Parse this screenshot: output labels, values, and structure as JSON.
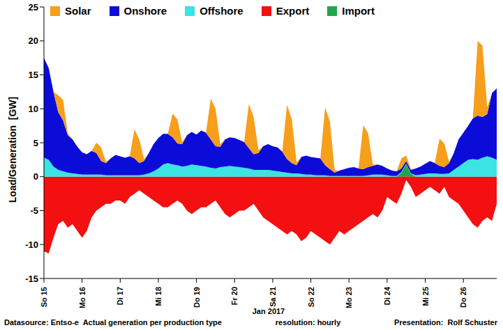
{
  "chart_data": {
    "type": "area",
    "stacked": true,
    "grid": false,
    "legend": "top",
    "x_label": "Jan 2017",
    "y_label": "Load/Generation  [GW]",
    "notes": [
      "Datasource: Entso-e  Actual generation per production type",
      "resolution: hourly",
      "Presentation:  Rolf Schuster"
    ],
    "categories": [
      "So 15",
      null,
      null,
      null,
      null,
      null,
      null,
      null,
      "Mo 16",
      null,
      null,
      null,
      null,
      null,
      null,
      null,
      "Di 17",
      null,
      null,
      null,
      null,
      null,
      null,
      null,
      "Mi 18",
      null,
      null,
      null,
      null,
      null,
      null,
      null,
      "Do 19",
      null,
      null,
      null,
      null,
      null,
      null,
      null,
      "Fr 20",
      null,
      null,
      null,
      null,
      null,
      null,
      null,
      "Sa 21",
      null,
      null,
      null,
      null,
      null,
      null,
      null,
      "So 22",
      null,
      null,
      null,
      null,
      null,
      null,
      null,
      "Mo 23",
      null,
      null,
      null,
      null,
      null,
      null,
      null,
      "Di 24",
      null,
      null,
      null,
      null,
      null,
      null,
      null,
      "Mi 25",
      null,
      null,
      null,
      null,
      null,
      null,
      null,
      "Do 26",
      null,
      null,
      null,
      null,
      null,
      null,
      null
    ],
    "ylim": [
      -15,
      25
    ],
    "yticks": [
      -15,
      -10,
      -5,
      0,
      5,
      10,
      15,
      20,
      25
    ],
    "series": [
      {
        "name": "Solar",
        "color": "#f79e1b",
        "values": [
          0,
          0,
          0,
          2.5,
          3.0,
          0.3,
          0,
          0,
          0,
          0,
          0,
          1.5,
          2.0,
          0.2,
          0,
          0,
          0,
          0,
          0,
          4.3,
          3.5,
          0.3,
          0,
          0,
          0,
          0,
          0,
          3.5,
          3.5,
          0.3,
          0,
          0,
          0,
          0,
          0,
          6.0,
          5.5,
          0.4,
          0,
          0,
          0,
          0,
          0,
          6.5,
          5.5,
          0.4,
          0,
          0,
          0,
          0,
          0,
          8.0,
          6.5,
          0.4,
          0,
          0,
          0,
          0,
          0,
          8.5,
          7.0,
          0.3,
          0,
          0,
          0,
          0,
          0,
          6.5,
          5.0,
          0.2,
          0,
          0,
          0,
          0,
          0,
          1.5,
          0.8,
          0.1,
          0,
          0,
          0,
          0,
          0,
          4.0,
          3.5,
          0.2,
          0,
          0,
          0,
          0,
          0,
          11.0,
          10.5,
          1.0,
          0,
          0
        ]
      },
      {
        "name": "Onshore",
        "color": "#0c0cd8",
        "values": [
          14.7,
          13.5,
          11.0,
          8.5,
          7.5,
          5.5,
          5.0,
          4.0,
          3.3,
          3.0,
          3.5,
          3.2,
          2.0,
          1.8,
          2.5,
          3.0,
          2.8,
          2.6,
          2.8,
          2.5,
          1.8,
          2.0,
          3.0,
          4.0,
          4.5,
          4.5,
          4.3,
          4.0,
          3.2,
          3.3,
          4.5,
          4.8,
          4.5,
          5.2,
          5.0,
          4.2,
          3.3,
          3.0,
          4.0,
          4.2,
          4.2,
          4.0,
          3.8,
          3.0,
          2.3,
          2.5,
          3.5,
          3.8,
          3.6,
          3.5,
          3.0,
          2.0,
          1.5,
          1.2,
          2.5,
          2.8,
          2.6,
          2.6,
          2.5,
          1.5,
          1.0,
          0.5,
          0.8,
          1.0,
          1.2,
          1.3,
          1.1,
          1.0,
          1.2,
          1.3,
          1.5,
          1.3,
          1.0,
          0.8,
          0.7,
          0.5,
          0.4,
          0.5,
          1.0,
          1.2,
          1.5,
          1.8,
          1.5,
          1.2,
          1.0,
          1.5,
          2.5,
          4.0,
          4.5,
          5.0,
          6.0,
          6.5,
          6.0,
          6.2,
          9.5,
          10.5
        ]
      },
      {
        "name": "Offshore",
        "color": "#3be3e3",
        "values": [
          2.8,
          2.5,
          1.5,
          1.0,
          0.8,
          0.6,
          0.5,
          0.4,
          0.3,
          0.3,
          0.3,
          0.3,
          0.3,
          0.2,
          0.2,
          0.2,
          0.2,
          0.2,
          0.2,
          0.2,
          0.2,
          0.3,
          0.5,
          0.8,
          1.2,
          1.8,
          2.0,
          1.8,
          1.7,
          1.5,
          1.6,
          1.8,
          1.7,
          1.6,
          1.5,
          1.3,
          1.2,
          1.4,
          1.5,
          1.6,
          1.5,
          1.4,
          1.3,
          1.2,
          1.0,
          1.0,
          1.0,
          1.0,
          0.9,
          0.8,
          0.7,
          0.6,
          0.5,
          0.5,
          0.4,
          0.3,
          0.3,
          0.2,
          0.2,
          0.2,
          0.1,
          0.1,
          0.1,
          0.1,
          0.1,
          0.1,
          0.1,
          0.1,
          0.2,
          0.3,
          0.3,
          0.3,
          0.2,
          0.1,
          0.1,
          0.1,
          0.1,
          0.1,
          0.2,
          0.3,
          0.4,
          0.5,
          0.5,
          0.4,
          0.4,
          0.5,
          1.0,
          1.5,
          2.0,
          2.5,
          2.6,
          2.5,
          2.8,
          3.0,
          2.8,
          2.5
        ]
      },
      {
        "name": "Export",
        "color": "#f41010",
        "values": [
          -11,
          -11.3,
          -9,
          -7,
          -6.5,
          -7.5,
          -7,
          -8,
          -9,
          -8,
          -6,
          -5,
          -4.5,
          -4,
          -4,
          -3.5,
          -3.5,
          -4,
          -3,
          -2.5,
          -2,
          -2.5,
          -3,
          -3.5,
          -4,
          -4.5,
          -4.5,
          -4,
          -3.5,
          -4,
          -5,
          -5.5,
          -5,
          -4.5,
          -4.5,
          -4,
          -3.5,
          -4.5,
          -5.5,
          -6,
          -5.5,
          -5,
          -5,
          -4.5,
          -4,
          -5,
          -6,
          -6.5,
          -7,
          -7.5,
          -8,
          -8.5,
          -8,
          -8.5,
          -9.5,
          -9,
          -8,
          -8.5,
          -9,
          -9.5,
          -10,
          -9,
          -8,
          -8.5,
          -8,
          -7.5,
          -7,
          -6.5,
          -6,
          -5.5,
          -6,
          -5,
          -3,
          -3.5,
          -4,
          -2.5,
          -0.5,
          -1.5,
          -3,
          -2.5,
          -2,
          -1.5,
          -2,
          -2.5,
          -1.5,
          -3,
          -3.5,
          -4,
          -5,
          -6,
          -7,
          -7.5,
          -6.5,
          -6,
          -6.5,
          -4
        ]
      },
      {
        "name": "Import",
        "color": "#1ea64b",
        "values": [
          0,
          0,
          0,
          0,
          0,
          0,
          0,
          0,
          0,
          0,
          0,
          0,
          0,
          0,
          0,
          0,
          0,
          0,
          0,
          0,
          0,
          0,
          0,
          0,
          0,
          0,
          0,
          0,
          0,
          0,
          0,
          0,
          0,
          0,
          0,
          0,
          0,
          0,
          0,
          0,
          0,
          0,
          0,
          0,
          0,
          0,
          0,
          0,
          0,
          0,
          0,
          0,
          0,
          0,
          0,
          0,
          0,
          0,
          0,
          0,
          0,
          0,
          0,
          0,
          0,
          0,
          0,
          0,
          0,
          0,
          0,
          0,
          0,
          0,
          0,
          0.6,
          1.8,
          0.4,
          0,
          0,
          0,
          0,
          0,
          0,
          0,
          0,
          0,
          0,
          0,
          0,
          0,
          0,
          0,
          0,
          0,
          0
        ]
      }
    ]
  }
}
